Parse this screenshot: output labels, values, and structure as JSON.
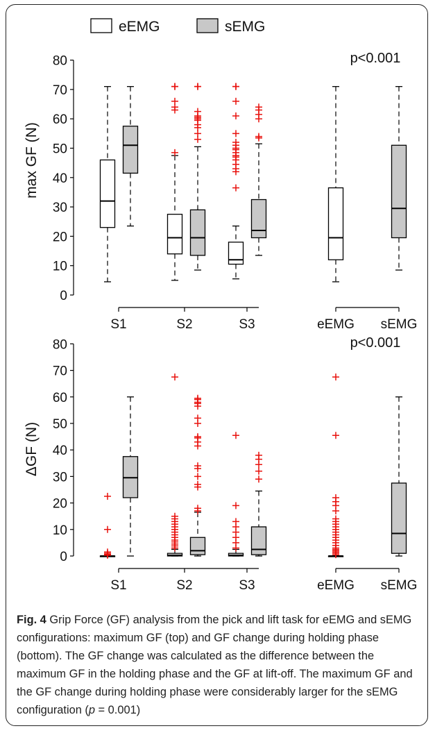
{
  "legend": {
    "items": [
      {
        "label": "eEMG",
        "fill": "#ffffff"
      },
      {
        "label": "sEMG",
        "fill": "#c8c8c8"
      }
    ]
  },
  "colors": {
    "box_fill_e": "#ffffff",
    "box_fill_s": "#c8c8c8",
    "outlier": "#e8100c",
    "stroke": "#000000"
  },
  "chart_data": [
    {
      "type": "boxplot",
      "ylabel": "max GF (N)",
      "ylim": [
        0,
        80
      ],
      "yticks": [
        0,
        10,
        20,
        30,
        40,
        50,
        60,
        70,
        80
      ],
      "group_labels": [
        "S1",
        "S2",
        "S3",
        "eEMG",
        "sEMG"
      ],
      "annotation": "p<0.001",
      "boxes": [
        {
          "group": "S1",
          "series": "eEMG",
          "whisker_low": 4.5,
          "q1": 23,
          "median": 32,
          "q3": 46,
          "whisker_high": 71,
          "outliers": []
        },
        {
          "group": "S1",
          "series": "sEMG",
          "whisker_low": 23.5,
          "q1": 41.5,
          "median": 51,
          "q3": 57.5,
          "whisker_high": 71,
          "outliers": []
        },
        {
          "group": "S2",
          "series": "eEMG",
          "whisker_low": 5,
          "q1": 14,
          "median": 19.5,
          "q3": 27.5,
          "whisker_high": 47.5,
          "outliers": [
            48.5,
            63,
            64,
            66,
            71,
            71
          ]
        },
        {
          "group": "S2",
          "series": "sEMG",
          "whisker_low": 8.5,
          "q1": 13.5,
          "median": 19.5,
          "q3": 29,
          "whisker_high": 50.5,
          "outliers": [
            53,
            55,
            57,
            58,
            59.5,
            60,
            60.5,
            61,
            62.5,
            71,
            71
          ]
        },
        {
          "group": "S3",
          "series": "eEMG",
          "whisker_low": 5.5,
          "q1": 10.5,
          "median": 12,
          "q3": 18,
          "whisker_high": 23.5,
          "outliers": [
            36.5,
            42,
            43,
            44.5,
            46,
            47,
            47.5,
            48.5,
            49.5,
            50,
            51,
            52,
            55,
            61,
            66,
            71,
            71
          ]
        },
        {
          "group": "S3",
          "series": "sEMG",
          "whisker_low": 13.5,
          "q1": 19.5,
          "median": 22,
          "q3": 32.5,
          "whisker_high": 51.5,
          "outliers": [
            53.5,
            54,
            60,
            61.5,
            63,
            64
          ]
        },
        {
          "group": "eEMG",
          "series": "eEMG",
          "whisker_low": 4.5,
          "q1": 12,
          "median": 19.5,
          "q3": 36.5,
          "whisker_high": 71,
          "outliers": []
        },
        {
          "group": "sEMG",
          "series": "sEMG",
          "whisker_low": 8.5,
          "q1": 19.5,
          "median": 29.5,
          "q3": 51,
          "whisker_high": 71,
          "outliers": []
        }
      ]
    },
    {
      "type": "boxplot",
      "ylabel": "ΔGF (N)",
      "ylim": [
        0,
        80
      ],
      "yticks": [
        0,
        10,
        20,
        30,
        40,
        50,
        60,
        70,
        80
      ],
      "group_labels": [
        "S1",
        "S2",
        "S3",
        "eEMG",
        "sEMG"
      ],
      "annotation": "p<0.001",
      "boxes": [
        {
          "group": "S1",
          "series": "eEMG",
          "whisker_low": 0,
          "q1": 0,
          "median": 0,
          "q3": 0,
          "whisker_high": 0,
          "outliers": [
            0.3,
            0.6,
            1,
            1.5,
            10,
            22.5
          ]
        },
        {
          "group": "S1",
          "series": "sEMG",
          "whisker_low": 0,
          "q1": 22,
          "median": 29.5,
          "q3": 37.5,
          "whisker_high": 60,
          "outliers": []
        },
        {
          "group": "S2",
          "series": "eEMG",
          "whisker_low": 0,
          "q1": 0,
          "median": 0.3,
          "q3": 1,
          "whisker_high": 2.5,
          "outliers": [
            3,
            3.8,
            4.5,
            5.3,
            6,
            7,
            8,
            9,
            10,
            11,
            12,
            13,
            14,
            15,
            67.5
          ]
        },
        {
          "group": "S2",
          "series": "sEMG",
          "whisker_low": 0,
          "q1": 0.5,
          "median": 2,
          "q3": 7,
          "whisker_high": 16.5,
          "outliers": [
            17,
            18,
            26,
            27,
            30,
            33,
            34,
            41.5,
            43,
            44.5,
            45,
            50,
            52,
            56.5,
            57.5,
            58,
            59,
            59.5
          ]
        },
        {
          "group": "S3",
          "series": "eEMG",
          "whisker_low": 0,
          "q1": 0,
          "median": 0.3,
          "q3": 1,
          "whisker_high": 2.5,
          "outliers": [
            3,
            5,
            7,
            9,
            11,
            13,
            19,
            45.5
          ]
        },
        {
          "group": "S3",
          "series": "sEMG",
          "whisker_low": 0,
          "q1": 0.5,
          "median": 2.5,
          "q3": 11,
          "whisker_high": 24.5,
          "outliers": [
            29,
            32,
            34.5,
            36.5,
            38
          ]
        },
        {
          "group": "eEMG",
          "series": "eEMG",
          "whisker_low": 0,
          "q1": 0,
          "median": 0,
          "q3": 0,
          "whisker_high": 0,
          "outliers": [
            0.5,
            1,
            1.5,
            2,
            2.5,
            3,
            4,
            5,
            6,
            7,
            8,
            9,
            10,
            11,
            12,
            13,
            14,
            17,
            19,
            20.5,
            22,
            45.5,
            67.5
          ]
        },
        {
          "group": "sEMG",
          "series": "sEMG",
          "whisker_low": 0,
          "q1": 1,
          "median": 8.5,
          "q3": 27.5,
          "whisker_high": 60,
          "outliers": []
        }
      ]
    }
  ],
  "caption": {
    "fig_label": "Fig. 4",
    "text_main": " Grip Force (GF) analysis from the pick and lift task for eEMG and sEMG configurations: maximum GF (top) and GF change during holding phase (bottom). The GF change was calculated as the difference between the maximum GF in the holding phase and the GF at lift-off. The maximum GF and the GF change during holding phase were considerably larger for the sEMG configuration (",
    "p_symbol": "p",
    "p_value_text": " = 0.001)"
  }
}
